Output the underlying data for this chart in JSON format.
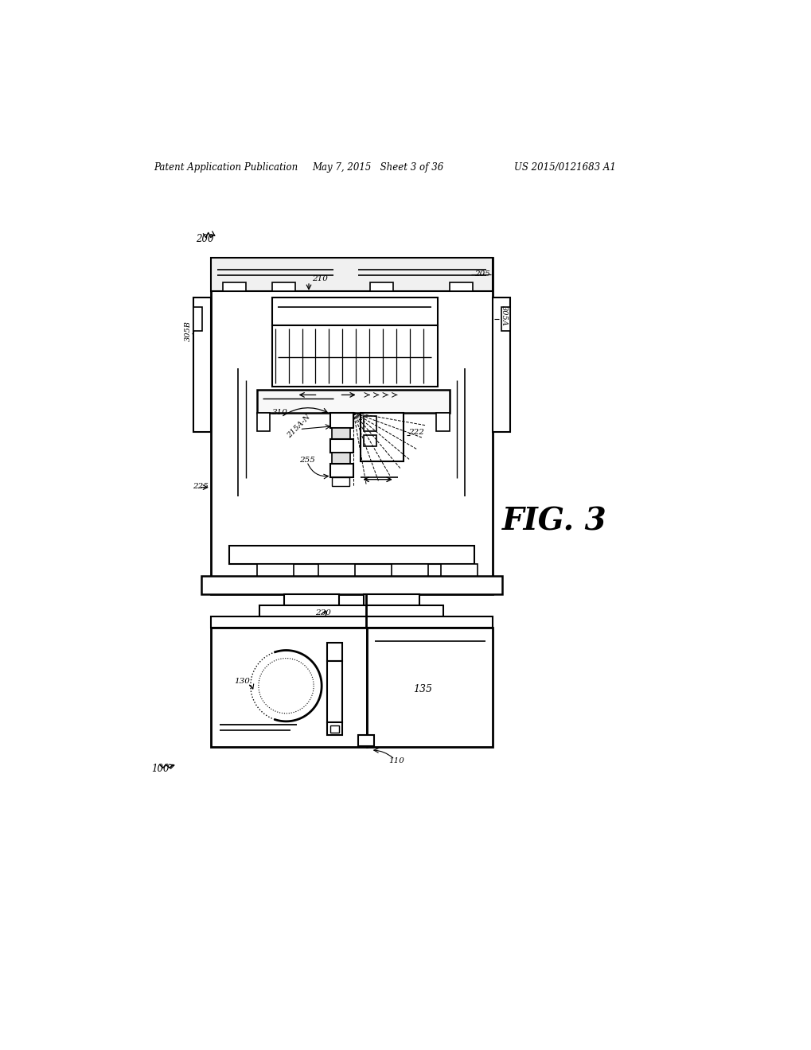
{
  "header_left": "Patent Application Publication",
  "header_mid": "May 7, 2015   Sheet 3 of 36",
  "header_right": "US 2015/0121683 A1",
  "fig_label": "FIG. 3",
  "bg_color": "#ffffff",
  "lc": "#000000"
}
